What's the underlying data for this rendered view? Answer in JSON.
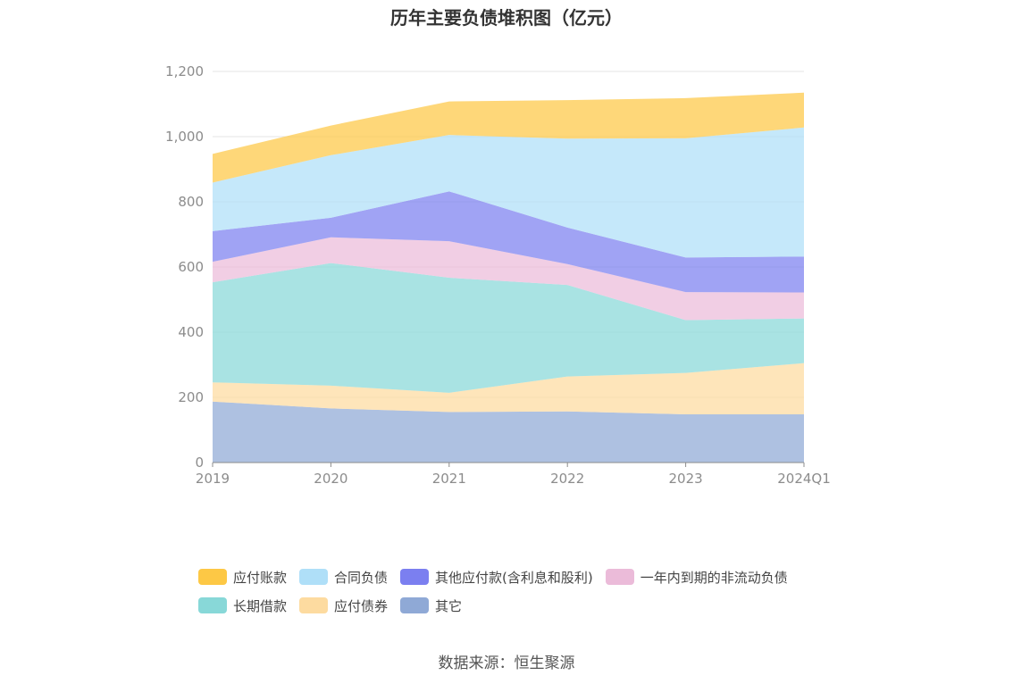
{
  "title": "历年主要负债堆积图（亿元）",
  "source": "数据来源：恒生聚源",
  "chart_data": {
    "type": "area",
    "stacked": true,
    "categories": [
      "2019",
      "2020",
      "2021",
      "2022",
      "2023",
      "2024Q1"
    ],
    "y_ticks": [
      "0",
      "200",
      "400",
      "600",
      "800",
      "1,000",
      "1,200"
    ],
    "ylim": [
      0,
      1200
    ],
    "grid": true,
    "legend_position": "bottom",
    "series": [
      {
        "name": "其它",
        "color": "#8fa9d6",
        "values": [
          187,
          166,
          155,
          157,
          148,
          148
        ]
      },
      {
        "name": "应付债券",
        "color": "#fddba0",
        "values": [
          59,
          70,
          59,
          107,
          127,
          157
        ]
      },
      {
        "name": "长期借款",
        "color": "#88d8d8",
        "values": [
          307,
          376,
          353,
          281,
          162,
          137
        ]
      },
      {
        "name": "一年内到期的非流动负债",
        "color": "#ebbbd9",
        "values": [
          63,
          79,
          112,
          64,
          86,
          80
        ]
      },
      {
        "name": "其他应付款(含利息和股利)",
        "color": "#7b7ff0",
        "values": [
          94,
          60,
          153,
          112,
          106,
          110
        ]
      },
      {
        "name": "合同负债",
        "color": "#afdff8",
        "values": [
          149,
          192,
          173,
          273,
          366,
          396
        ]
      },
      {
        "name": "应付账款",
        "color": "#fdc845",
        "values": [
          88,
          91,
          103,
          118,
          123,
          107
        ]
      }
    ],
    "legend_order": [
      [
        "应付账款",
        "合同负债",
        "其他应付款(含利息和股利)",
        "一年内到期的非流动负债"
      ],
      [
        "长期借款",
        "应付债券",
        "其它"
      ]
    ]
  }
}
